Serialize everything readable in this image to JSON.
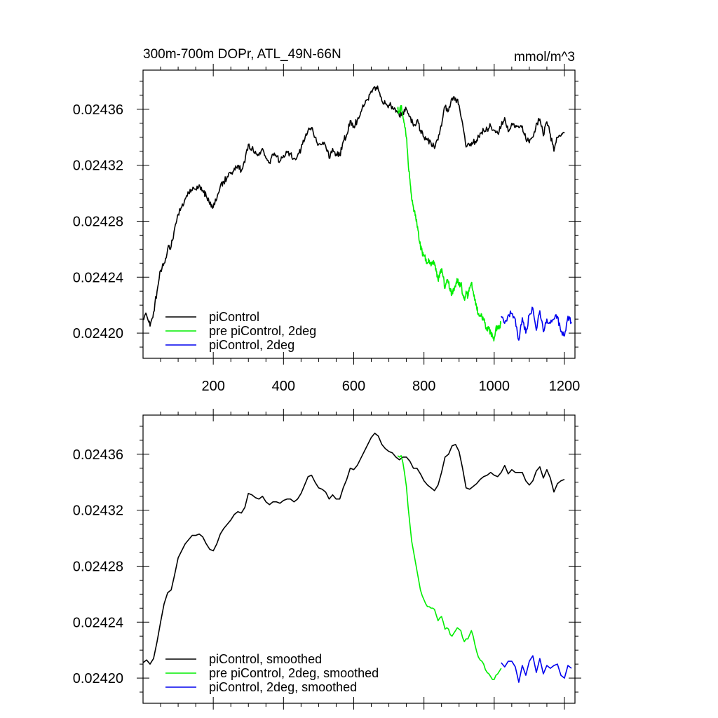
{
  "chart_data": [
    {
      "type": "line",
      "title": "300m-700m DOPr, ATL_49N-66N",
      "units": "mmol/m^3",
      "xlim": [
        0,
        1230
      ],
      "ylim": [
        0.024182,
        0.024388
      ],
      "x_ticks": [
        200,
        400,
        600,
        800,
        1000,
        1200
      ],
      "x_tick_labels": [
        "200",
        "400",
        "600",
        "800",
        "1000",
        "1200"
      ],
      "y_ticks": [
        0.0242,
        0.02424,
        0.02428,
        0.02432,
        0.02436
      ],
      "y_tick_labels": [
        "0.02420",
        "0.02424",
        "0.02428",
        "0.02432",
        "0.02436"
      ],
      "legend_position": "bottom-left",
      "series": [
        {
          "name": "piControl",
          "color": "#000000",
          "x": [
            0,
            10,
            20,
            30,
            40,
            50,
            60,
            70,
            80,
            90,
            100,
            110,
            120,
            130,
            140,
            150,
            160,
            170,
            180,
            190,
            200,
            210,
            220,
            230,
            240,
            250,
            260,
            270,
            280,
            290,
            300,
            310,
            320,
            330,
            340,
            350,
            360,
            370,
            380,
            390,
            400,
            410,
            420,
            430,
            440,
            450,
            460,
            470,
            480,
            490,
            500,
            510,
            520,
            530,
            540,
            550,
            560,
            570,
            580,
            590,
            600,
            610,
            620,
            630,
            640,
            650,
            660,
            670,
            680,
            690,
            700,
            710,
            720,
            730,
            740,
            750,
            760,
            770,
            780,
            790,
            800,
            810,
            820,
            830,
            840,
            850,
            860,
            870,
            880,
            890,
            900,
            910,
            920,
            930,
            940,
            950,
            960,
            970,
            980,
            990,
            1000,
            1010,
            1020,
            1030,
            1040,
            1050,
            1060,
            1070,
            1080,
            1090,
            1100,
            1110,
            1120,
            1130,
            1140,
            1150,
            1160,
            1170,
            1180,
            1190,
            1200
          ],
          "y": [
            0.02421,
            0.024213,
            0.024205,
            0.024215,
            0.02423,
            0.024245,
            0.02425,
            0.02426,
            0.024262,
            0.024275,
            0.024285,
            0.02429,
            0.024296,
            0.0243,
            0.024302,
            0.024303,
            0.024306,
            0.024302,
            0.024298,
            0.024292,
            0.02429,
            0.024296,
            0.024305,
            0.024308,
            0.024312,
            0.024314,
            0.024318,
            0.02432,
            0.024316,
            0.024322,
            0.024335,
            0.024332,
            0.02433,
            0.024327,
            0.024332,
            0.024325,
            0.024322,
            0.024328,
            0.024326,
            0.024323,
            0.024327,
            0.024329,
            0.024328,
            0.024325,
            0.024327,
            0.024332,
            0.024338,
            0.024345,
            0.024347,
            0.02434,
            0.024335,
            0.024335,
            0.024334,
            0.024325,
            0.024332,
            0.024328,
            0.024327,
            0.024337,
            0.024342,
            0.024352,
            0.024348,
            0.024352,
            0.024358,
            0.024363,
            0.024367,
            0.024373,
            0.024376,
            0.024374,
            0.024366,
            0.024364,
            0.024363,
            0.024362,
            0.024358,
            0.024355,
            0.024358,
            0.02436,
            0.024355,
            0.024348,
            0.024352,
            0.024345,
            0.02434,
            0.024338,
            0.024336,
            0.024332,
            0.024338,
            0.024348,
            0.024362,
            0.024359,
            0.024368,
            0.024368,
            0.024363,
            0.02435,
            0.024333,
            0.024334,
            0.024336,
            0.024338,
            0.024343,
            0.024345,
            0.024346,
            0.024348,
            0.024345,
            0.024343,
            0.024348,
            0.024354,
            0.024344,
            0.02435,
            0.024347,
            0.024347,
            0.024348,
            0.024339,
            0.024336,
            0.02434,
            0.02435,
            0.024353,
            0.024341,
            0.024351,
            0.024342,
            0.02433,
            0.02434,
            0.024341,
            0.024343
          ]
        },
        {
          "name": "pre piControl, 2deg",
          "color": "#00ee00",
          "x": [
            725,
            730,
            735,
            740,
            745,
            750,
            755,
            760,
            765,
            770,
            775,
            780,
            785,
            790,
            795,
            800,
            805,
            810,
            815,
            820,
            825,
            830,
            835,
            840,
            845,
            850,
            855,
            860,
            865,
            870,
            875,
            880,
            885,
            890,
            895,
            900,
            905,
            910,
            915,
            920,
            925,
            930,
            935,
            940,
            945,
            950,
            955,
            960,
            965,
            970,
            975,
            980,
            985,
            990,
            995,
            1000,
            1005,
            1010,
            1015,
            1020
          ],
          "y": [
            0.02436,
            0.024358,
            0.024362,
            0.024355,
            0.024348,
            0.02434,
            0.024322,
            0.02431,
            0.024296,
            0.02429,
            0.024284,
            0.024278,
            0.02427,
            0.024262,
            0.024258,
            0.024255,
            0.024253,
            0.02425,
            0.024252,
            0.024248,
            0.024251,
            0.02425,
            0.024244,
            0.024238,
            0.024243,
            0.024246,
            0.02424,
            0.024232,
            0.024238,
            0.024236,
            0.02423,
            0.024228,
            0.024232,
            0.024233,
            0.024238,
            0.024234,
            0.024236,
            0.024228,
            0.024224,
            0.02423,
            0.024226,
            0.024232,
            0.024236,
            0.02423,
            0.024224,
            0.024218,
            0.024214,
            0.024212,
            0.024212,
            0.02421,
            0.024205,
            0.024204,
            0.024203,
            0.0242,
            0.024198,
            0.024196,
            0.024204,
            0.024203,
            0.024205,
            0.024207
          ]
        },
        {
          "name": "piControl, 2deg",
          "color": "#0000ee",
          "x": [
            1020,
            1030,
            1040,
            1050,
            1060,
            1070,
            1080,
            1090,
            1100,
            1110,
            1120,
            1130,
            1140,
            1150,
            1160,
            1170,
            1180,
            1190,
            1200,
            1210,
            1220
          ],
          "y": [
            0.024212,
            0.024207,
            0.024213,
            0.024214,
            0.02421,
            0.024195,
            0.024211,
            0.0242,
            0.024213,
            0.024218,
            0.024202,
            0.024216,
            0.024201,
            0.02421,
            0.024207,
            0.02421,
            0.024212,
            0.024201,
            0.024198,
            0.024212,
            0.024208
          ]
        }
      ]
    },
    {
      "type": "line",
      "title": "",
      "xlim": [
        0,
        1230
      ],
      "ylim": [
        0.024182,
        0.024388
      ],
      "x_ticks": [
        200,
        400,
        600,
        800,
        1000,
        1200
      ],
      "x_tick_labels": [],
      "y_ticks": [
        0.0242,
        0.02424,
        0.02428,
        0.02432,
        0.02436
      ],
      "y_tick_labels": [
        "0.02420",
        "0.02424",
        "0.02428",
        "0.02432",
        "0.02436"
      ],
      "legend_position": "bottom-left",
      "series": [
        {
          "name": "piControl, smoothed",
          "color": "#000000",
          "x": [
            0,
            10,
            20,
            30,
            40,
            50,
            60,
            70,
            80,
            90,
            100,
            110,
            120,
            130,
            140,
            150,
            160,
            170,
            180,
            190,
            200,
            210,
            220,
            230,
            240,
            250,
            260,
            270,
            280,
            290,
            300,
            310,
            320,
            330,
            340,
            350,
            360,
            370,
            380,
            390,
            400,
            410,
            420,
            430,
            440,
            450,
            460,
            470,
            480,
            490,
            500,
            510,
            520,
            530,
            540,
            550,
            560,
            570,
            580,
            590,
            600,
            610,
            620,
            630,
            640,
            650,
            660,
            670,
            680,
            690,
            700,
            710,
            720,
            730,
            740,
            750,
            760,
            770,
            780,
            790,
            800,
            810,
            820,
            830,
            840,
            850,
            860,
            870,
            880,
            890,
            900,
            910,
            920,
            930,
            940,
            950,
            960,
            970,
            980,
            990,
            1000,
            1010,
            1020,
            1030,
            1040,
            1050,
            1060,
            1070,
            1080,
            1090,
            1100,
            1110,
            1120,
            1130,
            1140,
            1150,
            1160,
            1170,
            1180,
            1190,
            1200
          ],
          "y": [
            0.024211,
            0.024213,
            0.02421,
            0.024214,
            0.024226,
            0.02424,
            0.024253,
            0.024261,
            0.024263,
            0.024274,
            0.024286,
            0.024291,
            0.024296,
            0.024299,
            0.024302,
            0.024302,
            0.024303,
            0.024301,
            0.024296,
            0.024292,
            0.024291,
            0.024296,
            0.024303,
            0.024307,
            0.02431,
            0.024313,
            0.024317,
            0.024319,
            0.024318,
            0.024322,
            0.024332,
            0.024331,
            0.024329,
            0.024328,
            0.02433,
            0.024326,
            0.024324,
            0.024326,
            0.024326,
            0.024325,
            0.024327,
            0.024328,
            0.024328,
            0.024326,
            0.024328,
            0.024332,
            0.024338,
            0.024344,
            0.024345,
            0.02434,
            0.024336,
            0.024335,
            0.024333,
            0.024328,
            0.024331,
            0.024328,
            0.024328,
            0.024336,
            0.024342,
            0.02435,
            0.024349,
            0.024352,
            0.024357,
            0.024362,
            0.024367,
            0.024372,
            0.024375,
            0.024373,
            0.024367,
            0.024364,
            0.024362,
            0.024361,
            0.024358,
            0.024356,
            0.024358,
            0.024358,
            0.024355,
            0.02435,
            0.02435,
            0.024346,
            0.024341,
            0.024338,
            0.024336,
            0.024334,
            0.024338,
            0.024347,
            0.024358,
            0.02436,
            0.024366,
            0.024367,
            0.024362,
            0.02435,
            0.024336,
            0.024335,
            0.024337,
            0.024339,
            0.024342,
            0.024344,
            0.024345,
            0.024347,
            0.024345,
            0.024344,
            0.024347,
            0.024352,
            0.024346,
            0.024349,
            0.024347,
            0.024347,
            0.024347,
            0.024341,
            0.024338,
            0.024341,
            0.024348,
            0.024351,
            0.024343,
            0.024349,
            0.024343,
            0.024333,
            0.024339,
            0.024341,
            0.024342
          ]
        },
        {
          "name": "pre piControl, 2deg, smoothed",
          "color": "#00ee00",
          "x": [
            725,
            730,
            735,
            740,
            745,
            750,
            755,
            760,
            765,
            770,
            775,
            780,
            785,
            790,
            795,
            800,
            805,
            810,
            815,
            820,
            825,
            830,
            835,
            840,
            845,
            850,
            855,
            860,
            865,
            870,
            875,
            880,
            885,
            890,
            895,
            900,
            905,
            910,
            915,
            920,
            925,
            930,
            935,
            940,
            945,
            950,
            955,
            960,
            965,
            970,
            975,
            980,
            985,
            990,
            995,
            1000,
            1005,
            1010,
            1015,
            1020
          ],
          "y": [
            0.024359,
            0.024358,
            0.024359,
            0.024354,
            0.024346,
            0.024337,
            0.024322,
            0.02431,
            0.024298,
            0.024291,
            0.024284,
            0.024277,
            0.02427,
            0.024263,
            0.024259,
            0.024256,
            0.024253,
            0.024251,
            0.024251,
            0.02425,
            0.02425,
            0.024249,
            0.024245,
            0.024241,
            0.024243,
            0.024244,
            0.02424,
            0.024235,
            0.024236,
            0.024235,
            0.024231,
            0.02423,
            0.024232,
            0.024234,
            0.024236,
            0.024235,
            0.024234,
            0.024229,
            0.024226,
            0.024228,
            0.024228,
            0.024231,
            0.024234,
            0.02423,
            0.024224,
            0.024219,
            0.024215,
            0.024213,
            0.024212,
            0.02421,
            0.024206,
            0.024204,
            0.024203,
            0.024201,
            0.024199,
            0.024199,
            0.024202,
            0.024203,
            0.024205,
            0.024207
          ]
        },
        {
          "name": "piControl, 2deg, smoothed",
          "color": "#0000ee",
          "x": [
            1020,
            1030,
            1040,
            1050,
            1060,
            1070,
            1080,
            1090,
            1100,
            1110,
            1120,
            1130,
            1140,
            1150,
            1160,
            1170,
            1180,
            1190,
            1200,
            1210,
            1220
          ],
          "y": [
            0.024211,
            0.024208,
            0.024212,
            0.024212,
            0.024208,
            0.024197,
            0.024209,
            0.024202,
            0.024212,
            0.024216,
            0.024204,
            0.024214,
            0.024203,
            0.024209,
            0.024207,
            0.024209,
            0.02421,
            0.024202,
            0.0242,
            0.024209,
            0.024207
          ]
        }
      ]
    }
  ]
}
